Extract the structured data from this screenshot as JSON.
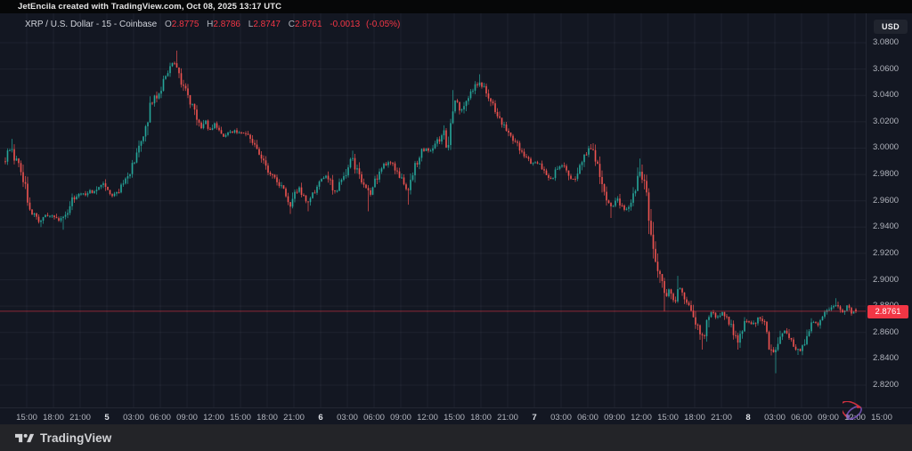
{
  "title_bar": {
    "text": "JetEncila created with TradingView.com, Oct 08, 2025 13:17 UTC"
  },
  "legend": {
    "symbol": "XRP / U.S. Dollar",
    "interval": "15",
    "exchange": "Coinbase",
    "separator": "-",
    "ohlc": [
      {
        "k": "O",
        "v": "2.8775"
      },
      {
        "k": "H",
        "v": "2.8786"
      },
      {
        "k": "L",
        "v": "2.8747"
      },
      {
        "k": "C",
        "v": "2.8761"
      }
    ],
    "change": "-0.0013",
    "change_pct": "(-0.05%)"
  },
  "price_axis": {
    "currency_label": "USD",
    "labels": [
      "3.0800",
      "3.0600",
      "3.0400",
      "3.0200",
      "3.0000",
      "2.9800",
      "2.9600",
      "2.9400",
      "2.9200",
      "2.9000",
      "2.8800",
      "2.8600",
      "2.8400",
      "2.8200"
    ],
    "price_tag": "2.8761"
  },
  "time_axis": {
    "labels": [
      "15:00",
      "18:00",
      "21:00",
      "5",
      "03:00",
      "06:00",
      "09:00",
      "12:00",
      "15:00",
      "18:00",
      "21:00",
      "6",
      "03:00",
      "06:00",
      "09:00",
      "12:00",
      "15:00",
      "18:00",
      "21:00",
      "7",
      "03:00",
      "06:00",
      "09:00",
      "12:00",
      "15:00",
      "18:00",
      "21:00",
      "8",
      "03:00",
      "06:00",
      "09:00",
      "12:00",
      "15:00"
    ],
    "day_indices": [
      3,
      11,
      19,
      27
    ]
  },
  "footer": {
    "brand": "TradingView"
  },
  "colors": {
    "background": "#131722",
    "titlebar_bg": "#060708",
    "footer_bg": "#232428",
    "grid": "rgba(240,243,250,0.055)",
    "axis_text": "#b2b5be",
    "up": "#26a69a",
    "down": "#ef5350",
    "accent_red": "#f23645",
    "legend_text": "#d1d4dc"
  },
  "chart_data": {
    "type": "candlestick",
    "title": "XRP / U.S. Dollar - 15 - Coinbase",
    "symbol": "XRPUSD",
    "interval_minutes": 15,
    "exchange": "Coinbase",
    "visible_time_range": "Oct 4 ~12:30 UTC to Oct 8 13:15 UTC, 2025",
    "ylim": [
      2.8134,
      3.0851
    ],
    "y_gridline_step": 0.02,
    "x_gridline_step_hours": 3,
    "legend_position": "top-left",
    "last_price": 2.8761,
    "last_candle": {
      "o": 2.8775,
      "h": 2.8786,
      "l": 2.8747,
      "c": 2.8761
    },
    "scale": {
      "p0": 2.82,
      "y0": 433,
      "p1": 3.08,
      "y1": 48,
      "chart_top": 15,
      "chart_right": 972
    },
    "candles": {
      "count": 383,
      "x0": 6,
      "dx": 2.5,
      "body_w": 1.6,
      "wick_w": 0.7
    },
    "time_ticks": {
      "x0": 30,
      "dx": 30
    },
    "anchors": [
      [
        6,
        2.99
      ],
      [
        10,
        2.998
      ],
      [
        13,
        3.0
      ],
      [
        16,
        2.993
      ],
      [
        20,
        2.988
      ],
      [
        24,
        2.98
      ],
      [
        28,
        2.97
      ],
      [
        32,
        2.96
      ],
      [
        36,
        2.952
      ],
      [
        40,
        2.948
      ],
      [
        45,
        2.944
      ],
      [
        50,
        2.95
      ],
      [
        55,
        2.947
      ],
      [
        60,
        2.95
      ],
      [
        65,
        2.945
      ],
      [
        70,
        2.946
      ],
      [
        75,
        2.952
      ],
      [
        80,
        2.96
      ],
      [
        85,
        2.964
      ],
      [
        90,
        2.966
      ],
      [
        95,
        2.964
      ],
      [
        100,
        2.968
      ],
      [
        105,
        2.966
      ],
      [
        110,
        2.97
      ],
      [
        115,
        2.974
      ],
      [
        120,
        2.968
      ],
      [
        126,
        2.964
      ],
      [
        132,
        2.967
      ],
      [
        138,
        2.972
      ],
      [
        144,
        2.98
      ],
      [
        150,
        2.99
      ],
      [
        156,
        3.0
      ],
      [
        163,
        3.014
      ],
      [
        170,
        3.034
      ],
      [
        176,
        3.04
      ],
      [
        182,
        3.046
      ],
      [
        188,
        3.058
      ],
      [
        193,
        3.065
      ],
      [
        197,
        3.062
      ],
      [
        201,
        3.055
      ],
      [
        205,
        3.048
      ],
      [
        210,
        3.04
      ],
      [
        215,
        3.033
      ],
      [
        220,
        3.024
      ],
      [
        226,
        3.015
      ],
      [
        231,
        3.02
      ],
      [
        236,
        3.014
      ],
      [
        241,
        3.018
      ],
      [
        246,
        3.013
      ],
      [
        251,
        3.008
      ],
      [
        257,
        3.011
      ],
      [
        263,
        3.013
      ],
      [
        269,
        3.011
      ],
      [
        275,
        3.012
      ],
      [
        281,
        3.007
      ],
      [
        287,
        2.999
      ],
      [
        293,
        2.992
      ],
      [
        299,
        2.986
      ],
      [
        305,
        2.979
      ],
      [
        311,
        2.974
      ],
      [
        317,
        2.97
      ],
      [
        322,
        2.962
      ],
      [
        326,
        2.956
      ],
      [
        330,
        2.964
      ],
      [
        335,
        2.97
      ],
      [
        340,
        2.964
      ],
      [
        345,
        2.959
      ],
      [
        350,
        2.964
      ],
      [
        356,
        2.97
      ],
      [
        362,
        2.976
      ],
      [
        367,
        2.979
      ],
      [
        372,
        2.972
      ],
      [
        377,
        2.966
      ],
      [
        382,
        2.973
      ],
      [
        387,
        2.978
      ],
      [
        392,
        2.988
      ],
      [
        396,
        2.992
      ],
      [
        400,
        2.984
      ],
      [
        404,
        2.976
      ],
      [
        408,
        2.971
      ],
      [
        412,
        2.968
      ],
      [
        416,
        2.966
      ],
      [
        420,
        2.972
      ],
      [
        425,
        2.98
      ],
      [
        430,
        2.986
      ],
      [
        435,
        2.988
      ],
      [
        438,
        2.99
      ],
      [
        442,
        2.986
      ],
      [
        446,
        2.982
      ],
      [
        450,
        2.977
      ],
      [
        454,
        2.972
      ],
      [
        458,
        2.967
      ],
      [
        462,
        2.975
      ],
      [
        466,
        2.985
      ],
      [
        470,
        2.993
      ],
      [
        474,
        2.998
      ],
      [
        478,
        3.0
      ],
      [
        482,
        2.997
      ],
      [
        486,
        3.0
      ],
      [
        490,
        3.003
      ],
      [
        494,
        3.008
      ],
      [
        498,
        3.013
      ],
      [
        502,
        2.996
      ],
      [
        506,
        3.024
      ],
      [
        510,
        3.036
      ],
      [
        514,
        3.034
      ],
      [
        518,
        3.028
      ],
      [
        522,
        3.03
      ],
      [
        526,
        3.04
      ],
      [
        530,
        3.044
      ],
      [
        534,
        3.048
      ],
      [
        538,
        3.05
      ],
      [
        542,
        3.047
      ],
      [
        546,
        3.044
      ],
      [
        550,
        3.038
      ],
      [
        554,
        3.031
      ],
      [
        558,
        3.027
      ],
      [
        562,
        3.022
      ],
      [
        566,
        3.017
      ],
      [
        571,
        3.011
      ],
      [
        576,
        3.007
      ],
      [
        581,
        3.003
      ],
      [
        586,
        2.997
      ],
      [
        591,
        2.993
      ],
      [
        596,
        2.989
      ],
      [
        601,
        2.99
      ],
      [
        606,
        2.988
      ],
      [
        611,
        2.984
      ],
      [
        616,
        2.979
      ],
      [
        620,
        2.977
      ],
      [
        624,
        2.982
      ],
      [
        628,
        2.986
      ],
      [
        632,
        2.988
      ],
      [
        636,
        2.984
      ],
      [
        640,
        2.979
      ],
      [
        644,
        2.976
      ],
      [
        648,
        2.98
      ],
      [
        652,
        2.988
      ],
      [
        656,
        2.994
      ],
      [
        660,
        2.998
      ],
      [
        663,
        3.0
      ],
      [
        666,
        2.996
      ],
      [
        669,
        2.99
      ],
      [
        672,
        2.981
      ],
      [
        675,
        2.973
      ],
      [
        678,
        2.966
      ],
      [
        681,
        2.96
      ],
      [
        684,
        2.958
      ],
      [
        687,
        2.955
      ],
      [
        690,
        2.959
      ],
      [
        693,
        2.962
      ],
      [
        696,
        2.958
      ],
      [
        699,
        2.955
      ],
      [
        702,
        2.953
      ],
      [
        705,
        2.955
      ],
      [
        708,
        2.958
      ],
      [
        711,
        2.962
      ],
      [
        714,
        2.97
      ],
      [
        717,
        2.978
      ],
      [
        719,
        2.982
      ],
      [
        721,
        2.978
      ],
      [
        723,
        2.972
      ],
      [
        725,
        2.968
      ],
      [
        727,
        2.962
      ],
      [
        729,
        2.95
      ],
      [
        731,
        2.94
      ],
      [
        733,
        2.93
      ],
      [
        735,
        2.92
      ],
      [
        737,
        2.913
      ],
      [
        739,
        2.907
      ],
      [
        741,
        2.901
      ],
      [
        743,
        2.897
      ],
      [
        745,
        2.891
      ],
      [
        747,
        2.886
      ],
      [
        749,
        2.89
      ],
      [
        751,
        2.893
      ],
      [
        753,
        2.889
      ],
      [
        755,
        2.887
      ],
      [
        757,
        2.884
      ],
      [
        759,
        2.886
      ],
      [
        762,
        2.896
      ],
      [
        765,
        2.892
      ],
      [
        768,
        2.887
      ],
      [
        771,
        2.883
      ],
      [
        774,
        2.879
      ],
      [
        777,
        2.876
      ],
      [
        780,
        2.871
      ],
      [
        783,
        2.866
      ],
      [
        786,
        2.861
      ],
      [
        789,
        2.857
      ],
      [
        792,
        2.862
      ],
      [
        795,
        2.87
      ],
      [
        798,
        2.877
      ],
      [
        801,
        2.874
      ],
      [
        804,
        2.871
      ],
      [
        807,
        2.873
      ],
      [
        810,
        2.876
      ],
      [
        813,
        2.874
      ],
      [
        816,
        2.871
      ],
      [
        819,
        2.867
      ],
      [
        822,
        2.863
      ],
      [
        825,
        2.857
      ],
      [
        828,
        2.852
      ],
      [
        831,
        2.858
      ],
      [
        834,
        2.864
      ],
      [
        837,
        2.868
      ],
      [
        840,
        2.869
      ],
      [
        843,
        2.867
      ],
      [
        846,
        2.866
      ],
      [
        849,
        2.87
      ],
      [
        852,
        2.872
      ],
      [
        855,
        2.87
      ],
      [
        858,
        2.867
      ],
      [
        861,
        2.858
      ],
      [
        864,
        2.85
      ],
      [
        867,
        2.845
      ],
      [
        870,
        2.842
      ],
      [
        873,
        2.849
      ],
      [
        876,
        2.855
      ],
      [
        879,
        2.86
      ],
      [
        882,
        2.861
      ],
      [
        885,
        2.858
      ],
      [
        888,
        2.854
      ],
      [
        891,
        2.85
      ],
      [
        894,
        2.848
      ],
      [
        897,
        2.846
      ],
      [
        900,
        2.849
      ],
      [
        903,
        2.853
      ],
      [
        906,
        2.858
      ],
      [
        909,
        2.864
      ],
      [
        912,
        2.868
      ],
      [
        915,
        2.869
      ],
      [
        918,
        2.866
      ],
      [
        921,
        2.869
      ],
      [
        924,
        2.872
      ],
      [
        927,
        2.875
      ],
      [
        930,
        2.877
      ],
      [
        933,
        2.879
      ],
      [
        936,
        2.88
      ],
      [
        939,
        2.882
      ],
      [
        942,
        2.878
      ],
      [
        945,
        2.875
      ],
      [
        948,
        2.878
      ],
      [
        951,
        2.88
      ],
      [
        954,
        2.878
      ],
      [
        957,
        2.875
      ],
      [
        961,
        2.8761
      ]
    ],
    "special_wicks": [
      {
        "x": 13,
        "high": 3.007
      },
      {
        "x": 45,
        "low": 2.94
      },
      {
        "x": 70,
        "low": 2.938
      },
      {
        "x": 199,
        "high": 3.074
      },
      {
        "x": 326,
        "low": 2.95
      },
      {
        "x": 345,
        "low": 2.952
      },
      {
        "x": 396,
        "high": 2.998
      },
      {
        "x": 414,
        "low": 2.952
      },
      {
        "x": 458,
        "low": 2.957
      },
      {
        "x": 508,
        "high": 3.044
      },
      {
        "x": 538,
        "high": 3.056
      },
      {
        "x": 663,
        "high": 3.003
      },
      {
        "x": 687,
        "low": 2.947
      },
      {
        "x": 719,
        "high": 2.992
      },
      {
        "x": 747,
        "low": 2.876
      },
      {
        "x": 762,
        "high": 2.903
      },
      {
        "x": 789,
        "low": 2.847
      },
      {
        "x": 828,
        "low": 2.847
      },
      {
        "x": 870,
        "low": 2.829
      },
      {
        "x": 897,
        "low": 2.843
      },
      {
        "x": 939,
        "high": 2.886
      }
    ]
  }
}
